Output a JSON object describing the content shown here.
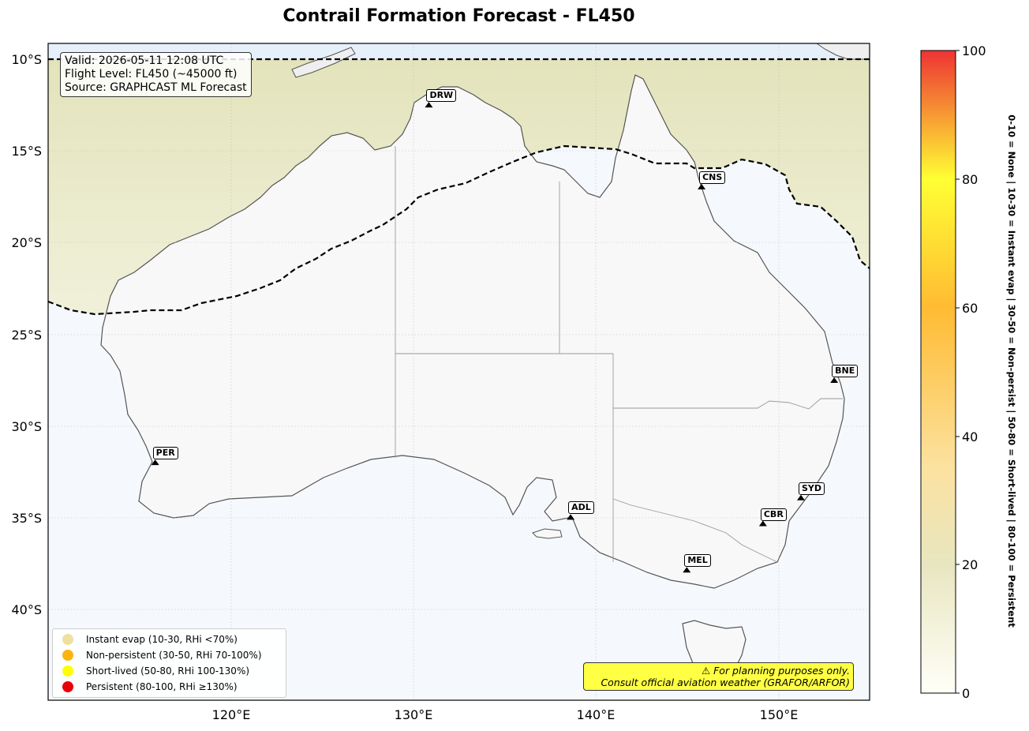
{
  "title": "Contrail Formation Forecast - FL450",
  "info": {
    "line1": "Valid: 2026-05-11 12:08 UTC",
    "line2": "Flight Level: FL450 (~45000 ft)",
    "line3": "Source: GRAPHCAST ML Forecast"
  },
  "lat_ticks": [
    "10°S",
    "15°S",
    "20°S",
    "25°S",
    "30°S",
    "35°S",
    "40°S"
  ],
  "lon_ticks": [
    "120°E",
    "130°E",
    "140°E",
    "150°E"
  ],
  "cities": [
    {
      "code": "DRW",
      "lon": 130.84,
      "lat": -12.46
    },
    {
      "code": "CNS",
      "lon": 145.77,
      "lat": -16.92
    },
    {
      "code": "BNE",
      "lon": 153.03,
      "lat": -27.47
    },
    {
      "code": "PER",
      "lon": 115.86,
      "lat": -31.95
    },
    {
      "code": "ADL",
      "lon": 138.6,
      "lat": -34.93
    },
    {
      "code": "SYD",
      "lon": 151.21,
      "lat": -33.87
    },
    {
      "code": "CBR",
      "lon": 149.13,
      "lat": -35.28
    },
    {
      "code": "MEL",
      "lon": 144.96,
      "lat": -37.81
    }
  ],
  "legend": [
    {
      "label": "Instant evap (10-30, RHi <70%)",
      "color": "#f0e0a0"
    },
    {
      "label": "Non-persistent (30-50, RHi 70-100%)",
      "color": "#ffb30f"
    },
    {
      "label": "Short-lived (50-80, RHi 100-130%)",
      "color": "#ffff00"
    },
    {
      "label": "Persistent (80-100, RHi ≥130%)",
      "color": "#e8000b"
    }
  ],
  "disclaimer": {
    "line1": "⚠ For planning purposes only.",
    "line2": "Consult official aviation weather (GRAFOR/ARFOR)"
  },
  "colorbar": {
    "ticks": [
      "0",
      "20",
      "40",
      "60",
      "80",
      "100"
    ],
    "side_label": "0-10 = None  |  10-30 = Instant evap  |  30-50 = Non-persist  |  50-80 = Short-lived  |  80-100 = Persistent"
  }
}
